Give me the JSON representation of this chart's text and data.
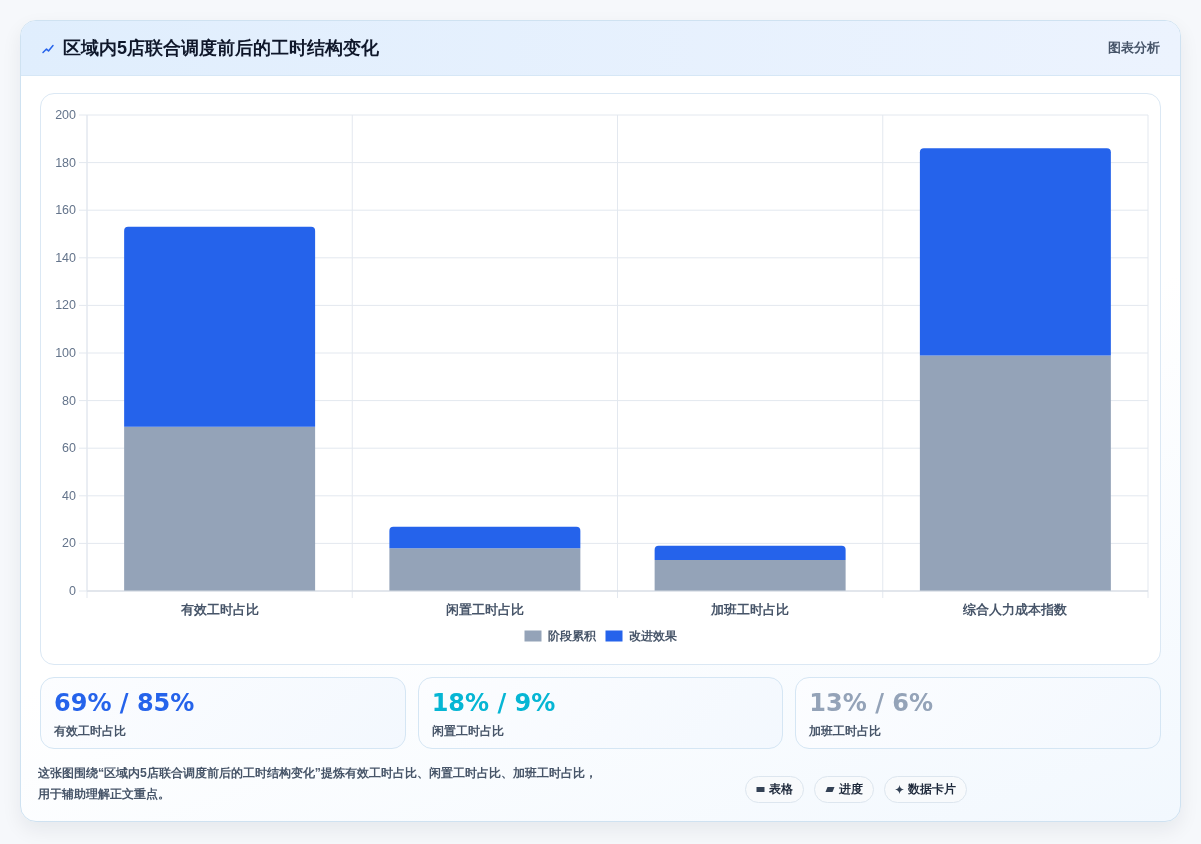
{
  "chart_data": [
    {
      "type": "bar",
      "title": "区域内5店联合调度前后的工时结构变化",
      "annotations": [
        "图表分析"
      ],
      "categories": [
        "有效工时占比",
        "闲置工时占比",
        "加班工时占比",
        "综合人力成本指数"
      ],
      "stacked": true,
      "series": [
        {
          "name": "阶段累积",
          "color": "#94a3b8",
          "values": [
            69,
            18,
            13,
            99
          ]
        },
        {
          "name": "改进效果",
          "color": "#2563eb",
          "values": [
            84,
            9,
            6,
            87
          ]
        }
      ],
      "ylim": [
        0,
        200
      ],
      "yticks": [
        0,
        20,
        40,
        60,
        80,
        100,
        120,
        140,
        160,
        180,
        200
      ],
      "grid": true,
      "legend": "bottom"
    },
    {
      "type": "other",
      "title": "69% / 85%",
      "subtitle": "有效工时占比",
      "color": "#2563eb"
    },
    {
      "type": "other",
      "title": "18% / 9%",
      "subtitle": "闲置工时占比",
      "color": "#06b6d4"
    },
    {
      "type": "other",
      "title": "13% / 6%",
      "subtitle": "加班工时占比",
      "color": "#94a3b8"
    },
    {
      "type": "other",
      "annotations": [
        "这张图围绕“区域内5店联合调度前后的工时结构变化”提炼有效工时占比、闲置工时占比、加班工时占比，用于辅助理解正文重点。",
        "表格",
        "进度",
        "数据卡片"
      ]
    }
  ]
}
